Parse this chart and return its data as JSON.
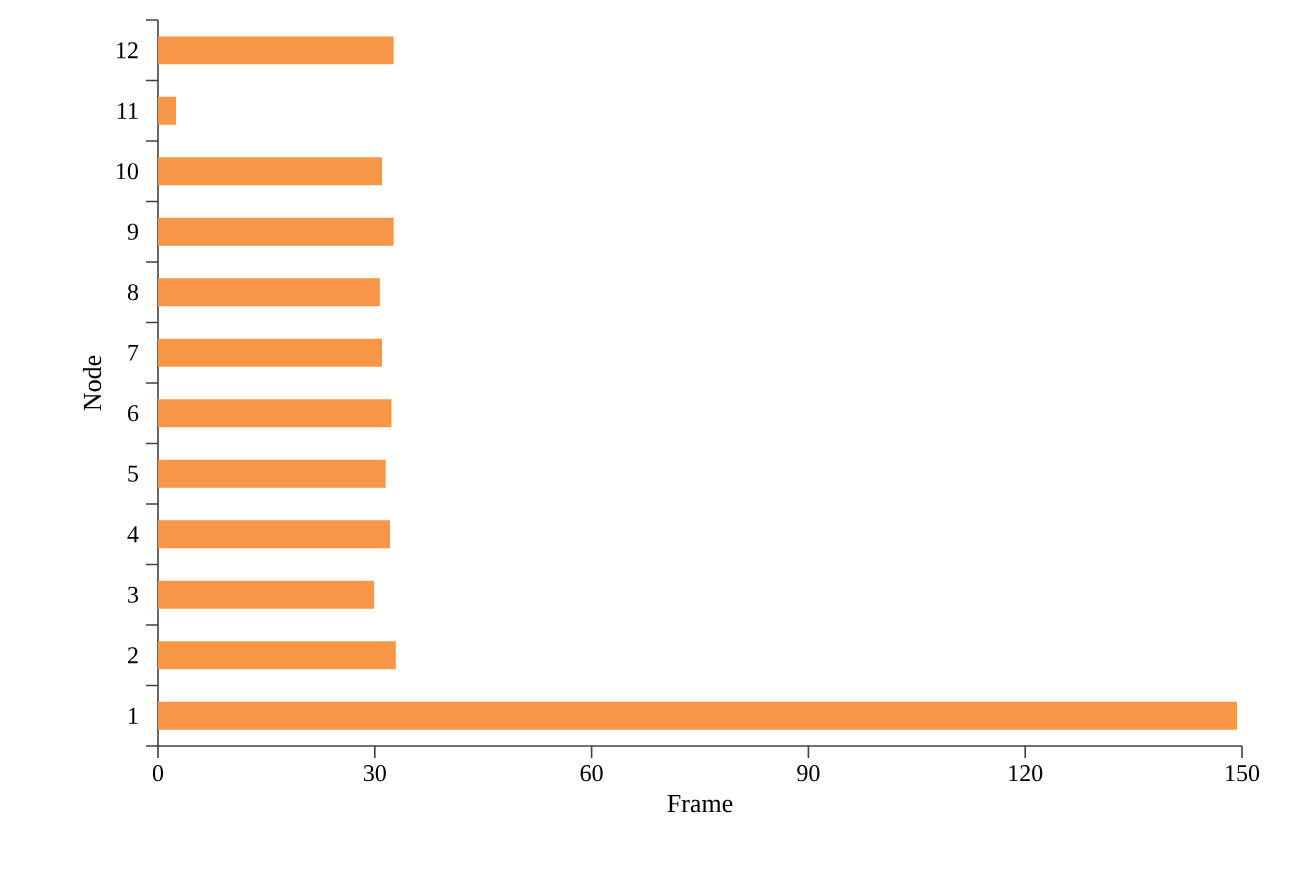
{
  "chart_data": {
    "type": "bar",
    "orientation": "horizontal",
    "xlabel": "Frame",
    "ylabel": "Node",
    "categories": [
      "12",
      "11",
      "10",
      "9",
      "8",
      "7",
      "6",
      "5",
      "4",
      "3",
      "2",
      "1"
    ],
    "values": [
      32.6,
      2.5,
      31.0,
      32.6,
      30.7,
      31.0,
      32.3,
      31.5,
      32.1,
      29.9,
      32.9,
      149.3
    ],
    "color": "#f79646",
    "xlim": [
      0,
      150
    ],
    "xticks": [
      0,
      30,
      60,
      90,
      120,
      150
    ],
    "grid": false
  }
}
